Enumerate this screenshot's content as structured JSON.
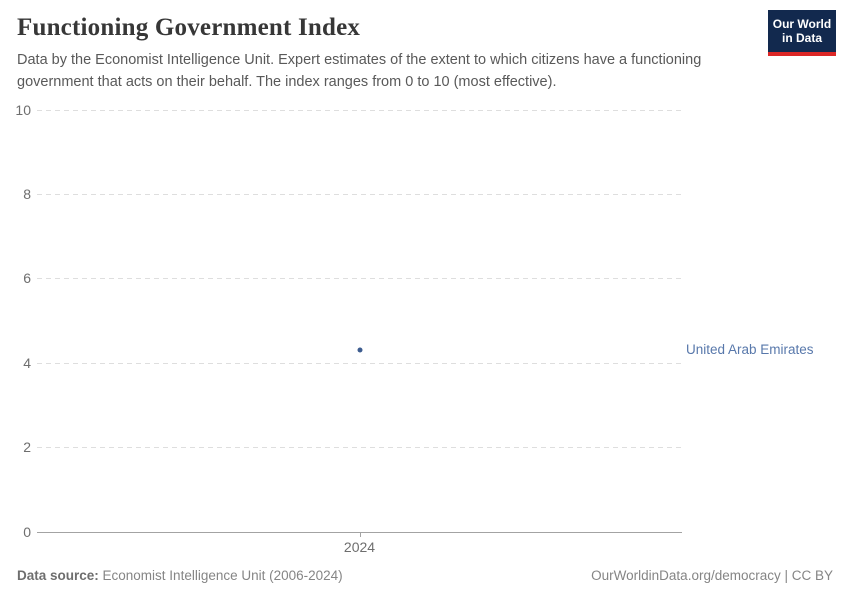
{
  "header": {
    "title": "Functioning Government Index",
    "subtitle": "Data by the Economist Intelligence Unit. Expert estimates of the extent to which citizens have a functioning government that acts on their behalf. The index ranges from 0 to 10 (most effective)."
  },
  "logo": {
    "line1": "Our World",
    "line2": "in Data",
    "bg_color": "#12294e",
    "bar_color": "#dc2726"
  },
  "chart_data": {
    "type": "scatter",
    "title": "Functioning Government Index",
    "x": [
      2024
    ],
    "xtick_labels": [
      "2024"
    ],
    "series": [
      {
        "name": "United Arab Emirates",
        "values": [
          4.29
        ]
      }
    ],
    "xlabel": "",
    "ylabel": "",
    "ylim": [
      0,
      10
    ],
    "yticks": [
      0,
      2,
      4,
      6,
      8,
      10
    ],
    "grid": "horizontal-dashed",
    "legend_position": "entity label right of point",
    "point_color": "#3d5c8f",
    "entity_label_color": "#5878ab"
  },
  "footer": {
    "source_label": "Data source:",
    "source_value": " Economist Intelligence Unit (2006-2024)",
    "attribution": "OurWorldinData.org/democracy | CC BY"
  }
}
